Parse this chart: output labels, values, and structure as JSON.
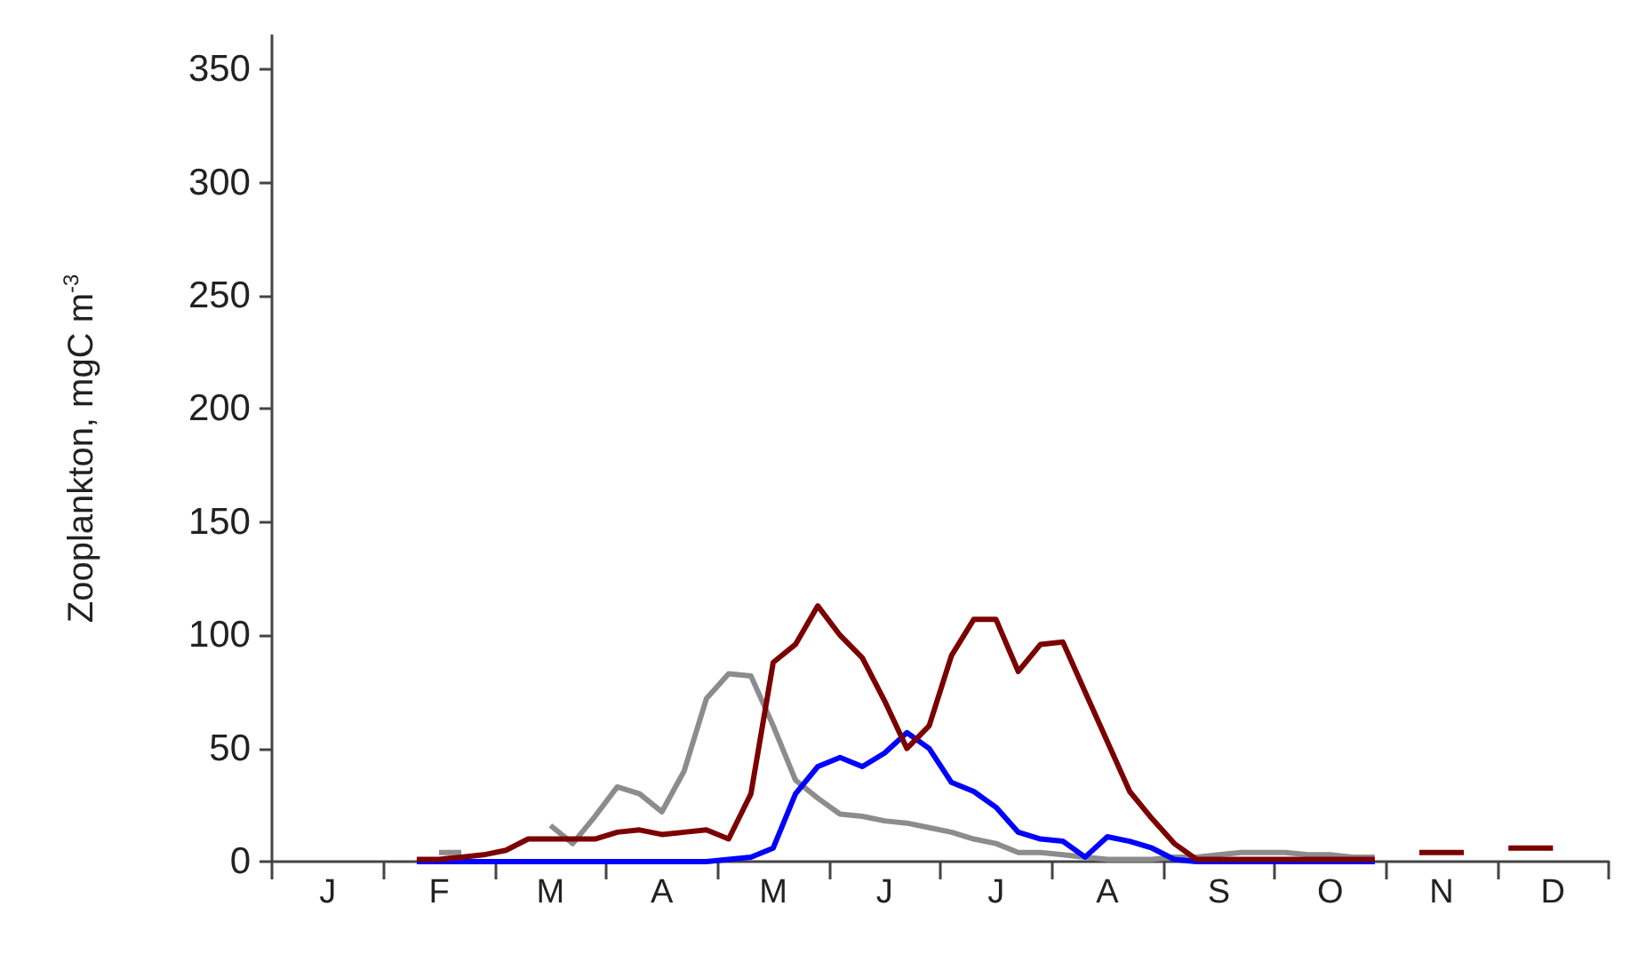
{
  "chart_data": {
    "type": "line",
    "ylabel": "Zooplankton, mgC m$^{-3}$",
    "ylim": [
      0,
      365
    ],
    "categories": [
      null,
      null,
      "J",
      null,
      null,
      null,
      null,
      "F",
      null,
      null,
      null,
      null,
      "M",
      null,
      null,
      null,
      null,
      "A",
      null,
      null,
      null,
      null,
      "M",
      null,
      null,
      null,
      null,
      "J",
      null,
      null,
      null,
      null,
      "J",
      null,
      null,
      null,
      null,
      "A",
      null,
      null,
      null,
      null,
      "S",
      null,
      null,
      null,
      null,
      "O",
      null,
      null,
      null,
      null,
      "N",
      null,
      null,
      null,
      null,
      "D",
      null,
      null
    ],
    "yticks": [
      0,
      50,
      100,
      150,
      200,
      250,
      300,
      350
    ],
    "grid": false,
    "marker": "none",
    "line_style": "solid",
    "series": [
      {
        "color": "#8c8c8c",
        "values": [
          null,
          null,
          null,
          null,
          null,
          null,
          null,
          4,
          4,
          null,
          null,
          null,
          16,
          8,
          20,
          33,
          30,
          22,
          40,
          72,
          83,
          82,
          60,
          36,
          28,
          21,
          20,
          18,
          17,
          15,
          13,
          10,
          8,
          4,
          4,
          3,
          2,
          1,
          1,
          1,
          2,
          2,
          3,
          4,
          4,
          4,
          3,
          3,
          2,
          2,
          null,
          null,
          null,
          null,
          null,
          null,
          null,
          null,
          null,
          null
        ]
      },
      {
        "color": "#0000ff",
        "values": [
          null,
          null,
          null,
          null,
          null,
          null,
          0,
          0,
          0,
          0,
          0,
          0,
          0,
          0,
          0,
          0,
          0,
          0,
          0,
          0,
          1,
          2,
          6,
          30,
          42,
          46,
          42,
          48,
          57,
          50,
          35,
          31,
          24,
          13,
          10,
          9,
          2,
          11,
          9,
          6,
          1,
          0,
          0,
          0,
          0,
          0,
          0,
          0,
          0,
          0,
          null,
          null,
          null,
          null,
          null,
          null,
          null,
          null,
          null,
          null
        ]
      },
      {
        "color": "#7b0000",
        "values": [
          null,
          null,
          null,
          null,
          null,
          null,
          1,
          1,
          2,
          3,
          5,
          10,
          10,
          10,
          10,
          13,
          14,
          12,
          13,
          14,
          10,
          30,
          88,
          96,
          113,
          100,
          90,
          71,
          50,
          60,
          91,
          107,
          107,
          84,
          96,
          97,
          75,
          53,
          31,
          19,
          8,
          1,
          1,
          1,
          1,
          1,
          1,
          1,
          1,
          1,
          null,
          4,
          4,
          4,
          null,
          6,
          6,
          6,
          null,
          null
        ]
      }
    ]
  }
}
